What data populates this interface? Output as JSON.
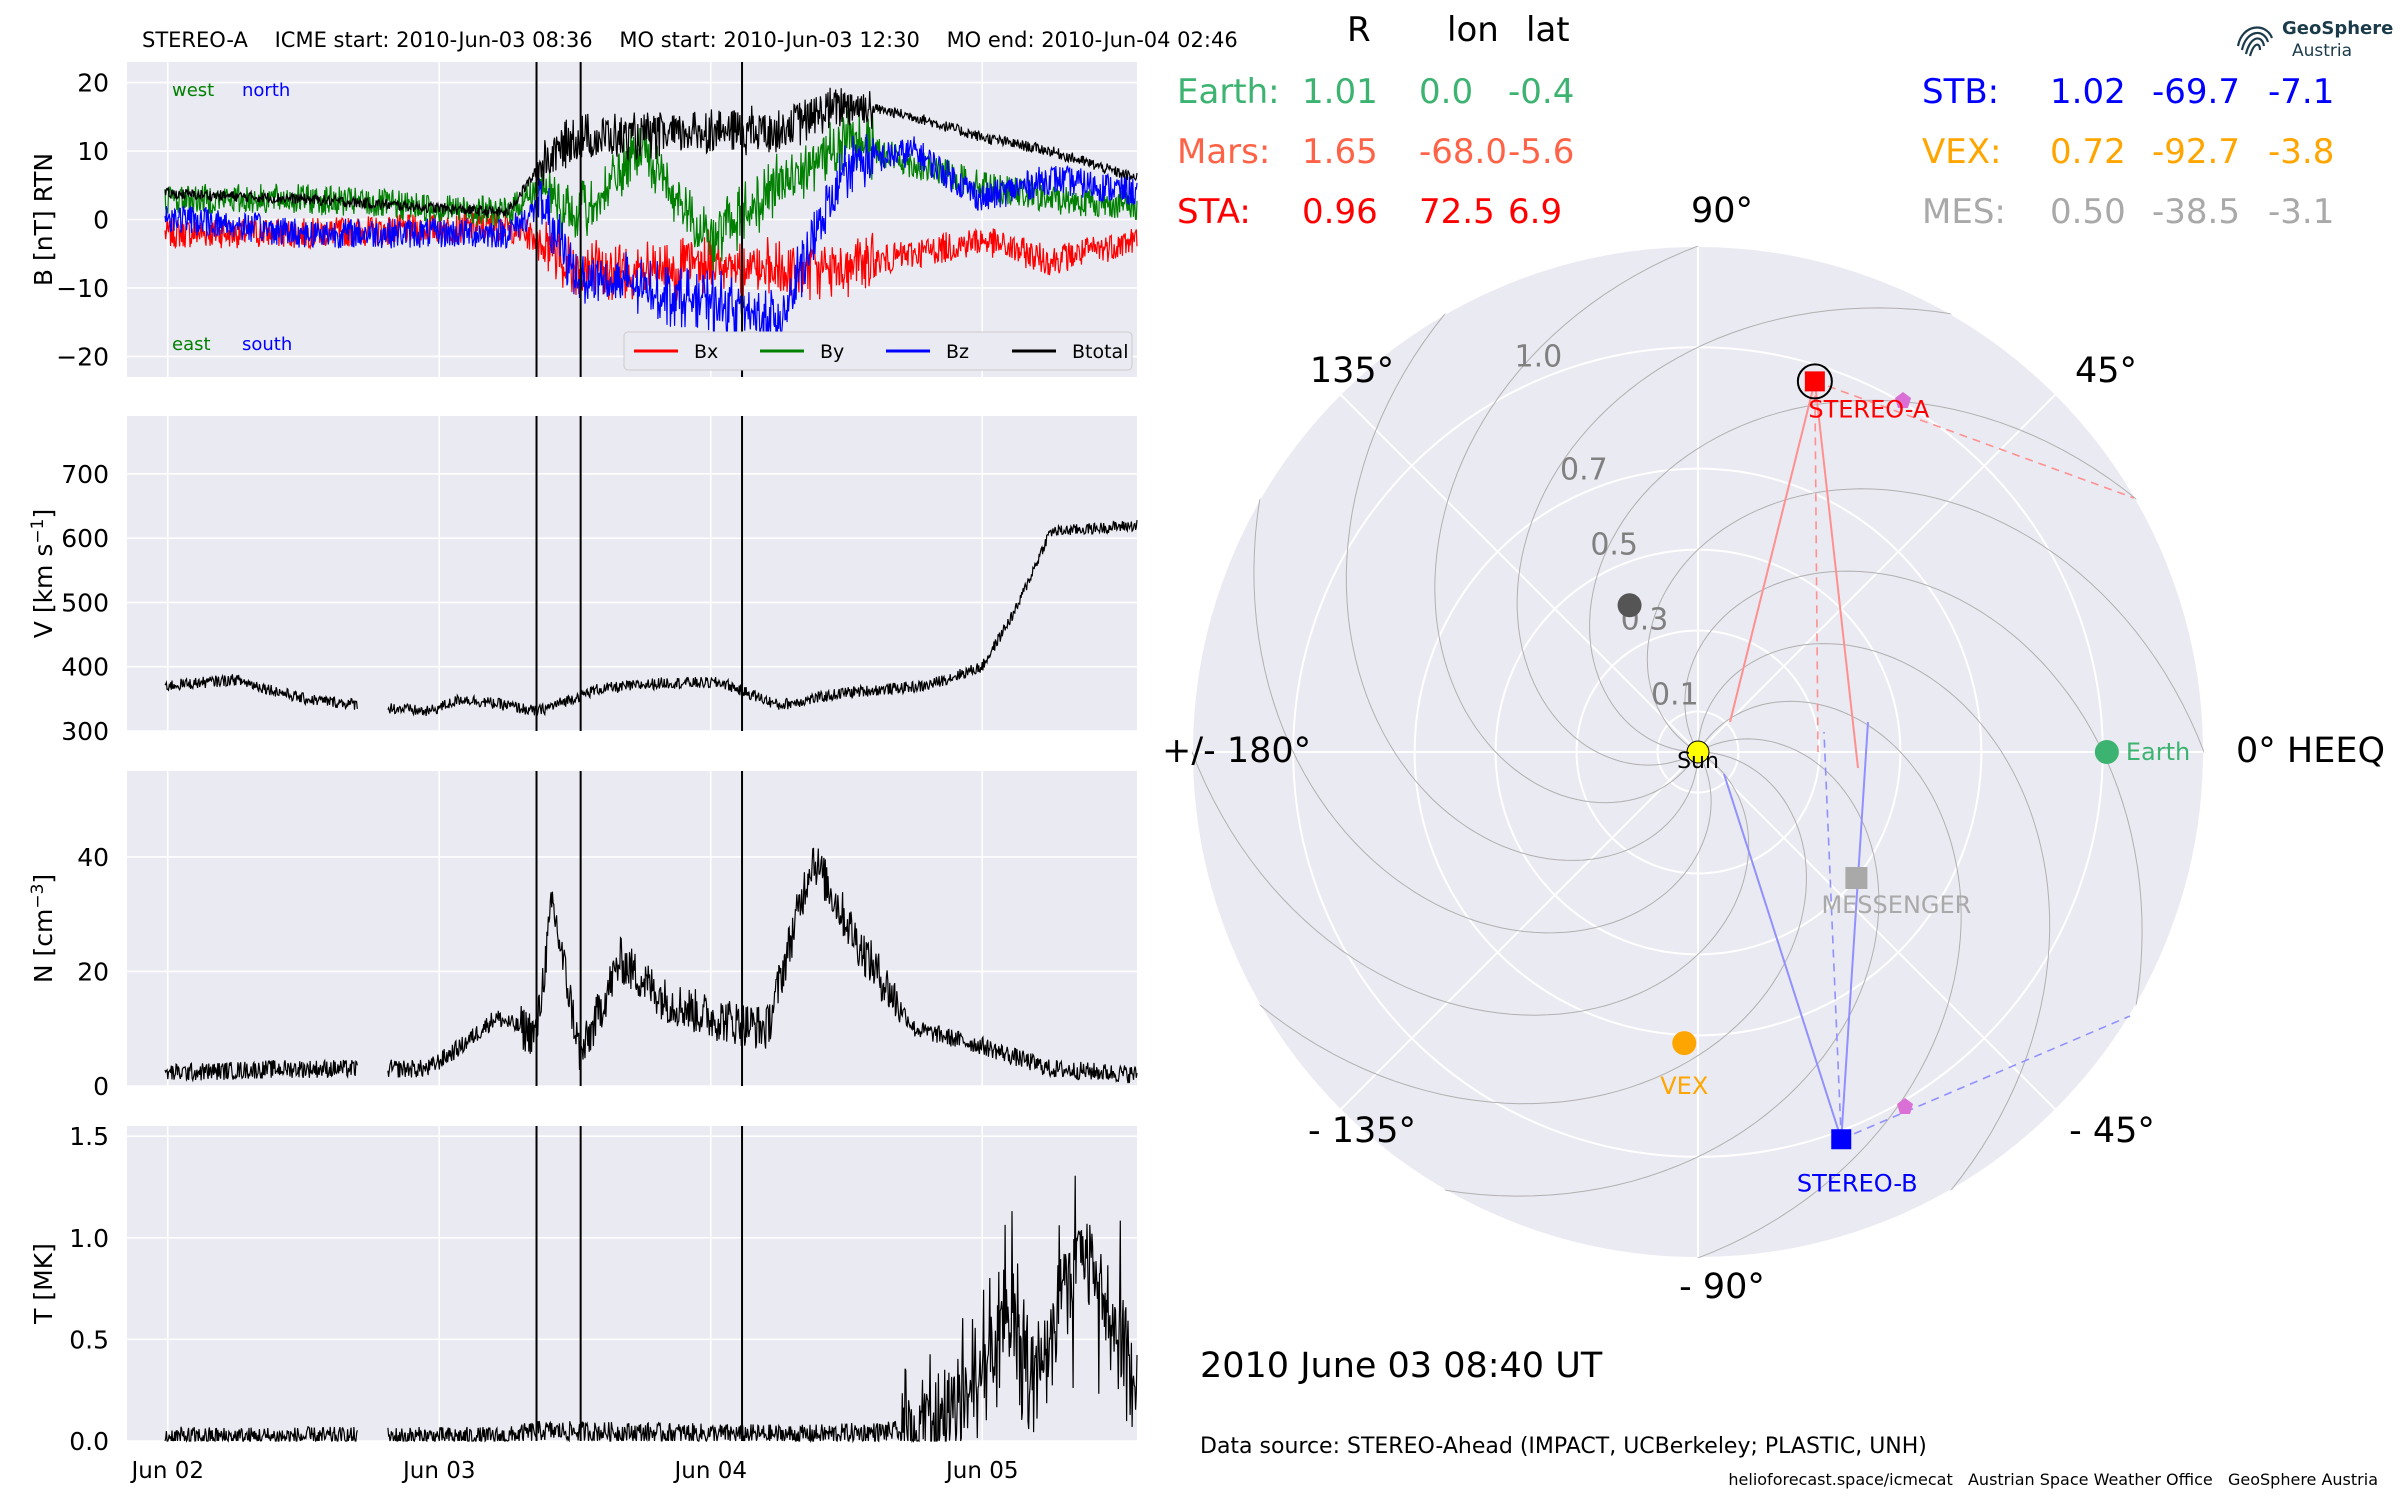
{
  "header": {
    "spacecraft": "STEREO-A",
    "icme_start": "ICME start: 2010-Jun-03 08:36",
    "mo_start": "MO start: 2010-Jun-03 12:30",
    "mo_end": "MO end: 2010-Jun-04 02:46"
  },
  "colors": {
    "bx": "#ff0000",
    "by": "#008000",
    "bz": "#0000ff",
    "btotal": "#000000",
    "earth": "#3cb371",
    "mars": "#ff6347",
    "sta": "#ff0000",
    "stb": "#0000ff",
    "vex": "#ffa500",
    "mes": "#a9a9a9",
    "panel_bg": "#eaeaf2"
  },
  "position_table": {
    "headers": [
      "R",
      "lon",
      "lat"
    ],
    "rows_left": [
      {
        "name": "Earth:",
        "r": "1.01",
        "lon": "0.0",
        "lat": "-0.4",
        "color": "#3cb371"
      },
      {
        "name": "Mars:",
        "r": "1.65",
        "lon": "-68.0",
        "lat": "-5.6",
        "color": "#ff6347"
      },
      {
        "name": "STA:",
        "r": "0.96",
        "lon": "72.5",
        "lat": "6.9",
        "color": "#ff0000"
      }
    ],
    "rows_right": [
      {
        "name": "STB:",
        "r": "1.02",
        "lon": "-69.7",
        "lat": "-7.1",
        "color": "#0000ff"
      },
      {
        "name": "VEX:",
        "r": "0.72",
        "lon": "-92.7",
        "lat": "-3.8",
        "color": "#ffa500"
      },
      {
        "name": "MES:",
        "r": "0.50",
        "lon": "-38.5",
        "lat": "-3.1",
        "color": "#a9a9a9"
      }
    ]
  },
  "polar": {
    "angle_labels": [
      "90°",
      "45°",
      "0° HEEQ",
      "- 45°",
      "- 90°",
      "- 135°",
      "+/- 180°",
      "135°"
    ],
    "radial_labels": [
      "0.1",
      "0.3",
      "0.5",
      "0.7",
      "1.0"
    ],
    "body_labels": {
      "sun": "Sun",
      "earth": "Earth",
      "sta": "STEREO-A",
      "stb": "STEREO-B",
      "mes": "MESSENGER",
      "vex": "VEX"
    }
  },
  "date_stamp": "2010 June 03  08:40 UT",
  "data_source": "Data source: STEREO-Ahead (IMPACT, UCBerkeley; PLASTIC, UNH)",
  "footer": "helioforecast.space/icmecat   Austrian Space Weather Office   GeoSphere Austria",
  "logo": {
    "line1": "GeoSphere",
    "line2": "Austria",
    "icon": "geosphere-swirl-icon"
  },
  "chart_data": [
    {
      "type": "line",
      "title": "",
      "ylabel": "B [nT] RTN",
      "ylim": [
        -23,
        23
      ],
      "yticks": [
        20,
        10,
        0,
        -10,
        -20
      ],
      "ytick_labels": [
        "20",
        "10",
        "0",
        "−10",
        "−20"
      ],
      "xticks": [
        "Jun 02",
        "Jun 03",
        "Jun 04",
        "Jun 05"
      ],
      "xlim_days": [
        1.85,
        5.57
      ],
      "annotations": [
        "west",
        "north",
        "east",
        "south"
      ],
      "legend": {
        "placement": "lower-right",
        "entries": [
          "Bx",
          "By",
          "Bz",
          "Btotal"
        ]
      },
      "event_lines": [
        "2010-06-03 08:36",
        "2010-06-03 12:30",
        "2010-06-04 02:46"
      ],
      "series": [
        {
          "name": "Bx",
          "x": [
            "2010-06-01 20:24",
            "2010-06-02 12:00",
            "2010-06-03 06:00",
            "2010-06-03 09:00",
            "2010-06-03 12:00",
            "2010-06-03 18:00",
            "2010-06-04 00:00",
            "2010-06-04 06:00",
            "2010-06-04 12:00",
            "2010-06-04 18:00",
            "2010-06-05 00:00",
            "2010-06-05 06:00",
            "2010-06-05 13:40"
          ],
          "values": [
            -2,
            -2,
            -1,
            -3,
            -7,
            -8,
            -6,
            -8,
            -7,
            -5,
            -3,
            -6,
            -3
          ]
        },
        {
          "name": "By",
          "x": [
            "2010-06-01 20:24",
            "2010-06-02 12:00",
            "2010-06-03 06:00",
            "2010-06-03 09:00",
            "2010-06-03 12:00",
            "2010-06-03 18:00",
            "2010-06-04 00:00",
            "2010-06-04 06:00",
            "2010-06-04 12:00",
            "2010-06-04 18:00",
            "2010-06-05 00:00",
            "2010-06-05 06:00",
            "2010-06-05 13:40"
          ],
          "values": [
            3,
            3,
            1,
            5,
            0,
            10,
            -3,
            5,
            12,
            8,
            5,
            3,
            2
          ]
        },
        {
          "name": "Bz",
          "x": [
            "2010-06-01 20:24",
            "2010-06-02 12:00",
            "2010-06-03 06:00",
            "2010-06-03 09:00",
            "2010-06-03 12:00",
            "2010-06-03 18:00",
            "2010-06-04 00:00",
            "2010-06-04 06:00",
            "2010-06-04 12:00",
            "2010-06-04 18:00",
            "2010-06-05 00:00",
            "2010-06-05 06:00",
            "2010-06-05 13:40"
          ],
          "values": [
            1,
            -2,
            -2,
            2,
            -8,
            -10,
            -12,
            -15,
            8,
            10,
            3,
            6,
            4
          ]
        },
        {
          "name": "Btotal",
          "x": [
            "2010-06-01 20:24",
            "2010-06-02 12:00",
            "2010-06-03 06:00",
            "2010-06-03 09:00",
            "2010-06-03 12:00",
            "2010-06-03 18:00",
            "2010-06-04 00:00",
            "2010-06-04 06:00",
            "2010-06-04 12:00",
            "2010-06-04 18:00",
            "2010-06-05 00:00",
            "2010-06-05 06:00",
            "2010-06-05 13:40"
          ],
          "values": [
            4,
            3,
            1,
            8,
            12,
            12,
            13,
            13,
            17,
            15,
            12,
            10,
            6
          ]
        }
      ]
    },
    {
      "type": "line",
      "title": "",
      "ylabel": "V [km s",
      "ylabel_sup": "−1",
      "ylabel_end": "]",
      "ylim": [
        300,
        790
      ],
      "yticks": [
        700,
        600,
        500,
        400,
        300
      ],
      "xticks": [
        "Jun 02",
        "Jun 03",
        "Jun 04",
        "Jun 05"
      ],
      "series": [
        {
          "name": "V",
          "x": [
            "2010-06-01 20:24",
            "2010-06-02 06:00",
            "2010-06-02 12:00",
            "2010-06-02 23:00",
            "2010-06-03 02:00",
            "2010-06-03 06:00",
            "2010-06-03 08:36",
            "2010-06-03 14:00",
            "2010-06-03 20:00",
            "2010-06-04 01:00",
            "2010-06-04 06:00",
            "2010-06-04 12:00",
            "2010-06-04 19:00",
            "2010-06-05 00:00",
            "2010-06-05 03:00",
            "2010-06-05 06:00",
            "2010-06-05 13:40"
          ],
          "values": [
            365,
            380,
            350,
            330,
            350,
            340,
            330,
            365,
            375,
            375,
            340,
            360,
            370,
            400,
            490,
            610,
            620
          ]
        }
      ]
    },
    {
      "type": "line",
      "title": "",
      "ylabel": "N [cm",
      "ylabel_sup": "−3",
      "ylabel_end": "]",
      "ylim": [
        0,
        55
      ],
      "yticks": [
        40,
        20,
        0
      ],
      "xticks": [
        "Jun 02",
        "Jun 03",
        "Jun 04",
        "Jun 05"
      ],
      "series": [
        {
          "name": "N",
          "x": [
            "2010-06-01 20:24",
            "2010-06-02 10:00",
            "2010-06-02 23:00",
            "2010-06-03 02:00",
            "2010-06-03 05:00",
            "2010-06-03 08:36",
            "2010-06-03 10:00",
            "2010-06-03 12:30",
            "2010-06-03 16:00",
            "2010-06-03 20:00",
            "2010-06-04 00:00",
            "2010-06-04 05:00",
            "2010-06-04 09:00",
            "2010-06-04 13:00",
            "2010-06-04 18:00",
            "2010-06-05 00:00",
            "2010-06-05 06:00",
            "2010-06-05 13:40"
          ],
          "values": [
            2,
            3,
            3,
            7,
            12,
            9,
            32,
            5,
            22,
            15,
            12,
            10,
            40,
            25,
            10,
            7,
            3,
            2
          ]
        }
      ]
    },
    {
      "type": "line",
      "title": "",
      "ylabel": "T [MK]",
      "ylim": [
        0,
        1.55
      ],
      "yticks": [
        1.5,
        1.0,
        0.5,
        0.0
      ],
      "ytick_labels": [
        "1.5",
        "1.0",
        "0.5",
        "0.0"
      ],
      "xticks": [
        "Jun 02",
        "Jun 03",
        "Jun 04",
        "Jun 05"
      ],
      "series": [
        {
          "name": "T",
          "x": [
            "2010-06-01 20:24",
            "2010-06-02 12:00",
            "2010-06-03 06:00",
            "2010-06-03 08:36",
            "2010-06-03 20:00",
            "2010-06-04 08:00",
            "2010-06-04 18:00",
            "2010-06-05 00:00",
            "2010-06-05 02:00",
            "2010-06-05 05:00",
            "2010-06-05 08:00",
            "2010-06-05 13:40"
          ],
          "values": [
            0.02,
            0.02,
            0.02,
            0.05,
            0.04,
            0.03,
            0.05,
            0.3,
            0.7,
            0.3,
            1.0,
            0.3
          ]
        }
      ]
    },
    {
      "type": "scatter",
      "title": "",
      "projection": "polar",
      "rlim": [
        0,
        1.25
      ],
      "rticks": [
        0.1,
        0.3,
        0.5,
        0.7,
        1.0
      ],
      "angle_ticks_deg": [
        0,
        45,
        90,
        135,
        180,
        -135,
        -90,
        -45
      ],
      "points": [
        {
          "name": "Sun",
          "r": 0.0,
          "lon": 0.0
        },
        {
          "name": "Earth",
          "r": 1.01,
          "lon": 0.0
        },
        {
          "name": "STEREO-A",
          "r": 0.96,
          "lon": 72.5
        },
        {
          "name": "STEREO-B",
          "r": 1.02,
          "lon": -69.7
        },
        {
          "name": "MESSENGER",
          "r": 0.5,
          "lon": -38.5
        },
        {
          "name": "VEX",
          "r": 0.72,
          "lon": -92.7
        },
        {
          "name": "Mars",
          "r": 1.65,
          "lon": -68.0
        },
        {
          "name": "ICME",
          "r": 0.4,
          "lon": 115
        }
      ]
    }
  ]
}
